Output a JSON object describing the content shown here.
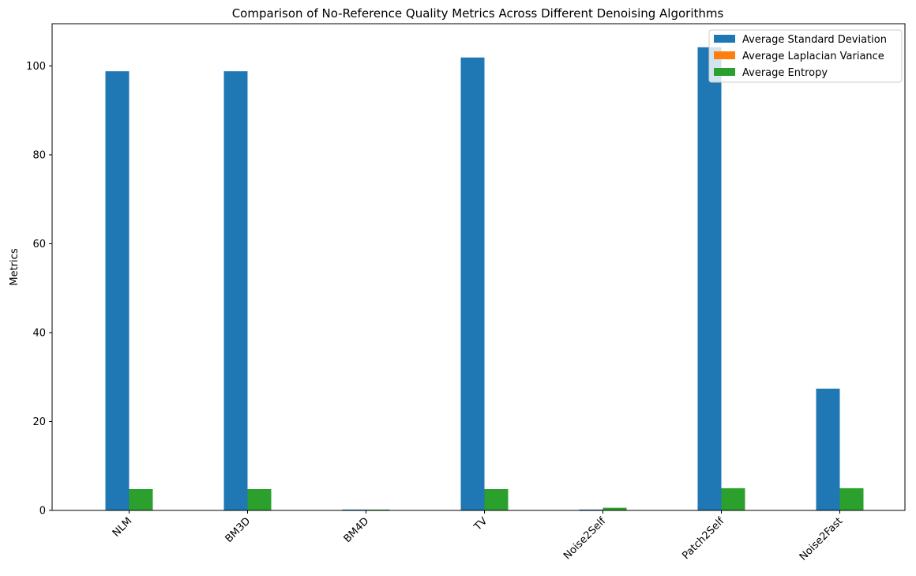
{
  "chart_data": {
    "type": "bar",
    "title": "Comparison of No-Reference Quality Metrics Across Different Denoising Algorithms",
    "xlabel": "",
    "ylabel": "Metrics",
    "categories": [
      "NLM",
      "BM3D",
      "BM4D",
      "TV",
      "Noise2Self",
      "Patch2Self",
      "Noise2Fast"
    ],
    "series": [
      {
        "name": "Average Standard Deviation",
        "color": "#1f77b4",
        "values": [
          98.8,
          98.8,
          0.2,
          101.9,
          0.2,
          104.2,
          27.4
        ]
      },
      {
        "name": "Average Laplacian Variance",
        "color": "#ff7f0e",
        "values": [
          0.02,
          0.02,
          0.01,
          0.02,
          0.01,
          0.02,
          0.02
        ]
      },
      {
        "name": "Average Entropy",
        "color": "#2ca02c",
        "values": [
          4.8,
          4.8,
          0.2,
          4.8,
          0.6,
          5.0,
          5.0
        ]
      }
    ],
    "ylim": [
      0,
      109.5
    ],
    "yticks": [
      0,
      20,
      40,
      60,
      80,
      100
    ],
    "grid": false,
    "legend_position": "upper-right",
    "xtick_rotation": 45
  }
}
